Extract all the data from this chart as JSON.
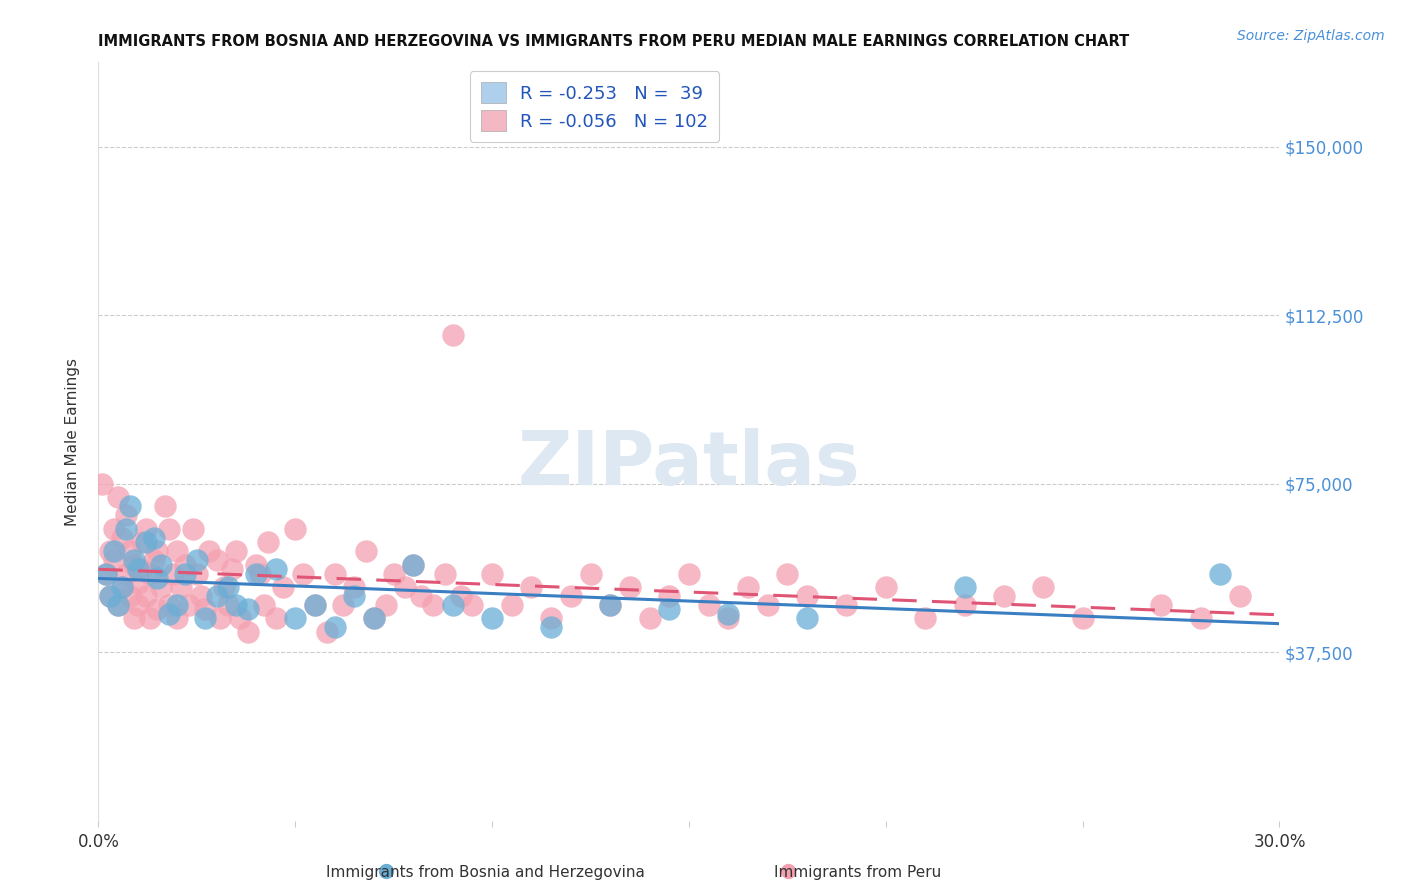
{
  "title": "IMMIGRANTS FROM BOSNIA AND HERZEGOVINA VS IMMIGRANTS FROM PERU MEDIAN MALE EARNINGS CORRELATION CHART",
  "source": "Source: ZipAtlas.com",
  "ylabel": "Median Male Earnings",
  "ytick_labels": [
    "$37,500",
    "$75,000",
    "$112,500",
    "$150,000"
  ],
  "ytick_values": [
    37500,
    75000,
    112500,
    150000
  ],
  "ylim": [
    0,
    168750
  ],
  "xlim": [
    0.0,
    0.3
  ],
  "bosnia_color": "#6aaed6",
  "peru_color": "#f4a0b0",
  "bosnia_line_color": "#3a7fc1",
  "peru_line_color": "#e05575",
  "bosnia_R": -0.253,
  "bosnia_N": 39,
  "peru_R": -0.056,
  "peru_N": 102,
  "bosnia_label": "Immigrants from Bosnia and Herzegovina",
  "peru_label": "Immigrants from Peru",
  "watermark": "ZIPatlas",
  "bosnia_scatter_x": [
    0.002,
    0.003,
    0.004,
    0.005,
    0.006,
    0.007,
    0.008,
    0.009,
    0.01,
    0.012,
    0.014,
    0.015,
    0.016,
    0.018,
    0.02,
    0.022,
    0.025,
    0.027,
    0.03,
    0.033,
    0.035,
    0.038,
    0.04,
    0.045,
    0.05,
    0.055,
    0.06,
    0.065,
    0.07,
    0.08,
    0.09,
    0.1,
    0.115,
    0.13,
    0.145,
    0.16,
    0.18,
    0.22,
    0.285
  ],
  "bosnia_scatter_y": [
    55000,
    50000,
    60000,
    48000,
    52000,
    65000,
    70000,
    58000,
    56000,
    62000,
    63000,
    54000,
    57000,
    46000,
    48000,
    55000,
    58000,
    45000,
    50000,
    52000,
    48000,
    47000,
    55000,
    56000,
    45000,
    48000,
    43000,
    50000,
    45000,
    57000,
    48000,
    45000,
    43000,
    48000,
    47000,
    46000,
    45000,
    52000,
    55000
  ],
  "peru_scatter_x": [
    0.001,
    0.002,
    0.003,
    0.003,
    0.004,
    0.004,
    0.005,
    0.005,
    0.006,
    0.006,
    0.007,
    0.007,
    0.008,
    0.008,
    0.009,
    0.009,
    0.01,
    0.01,
    0.011,
    0.011,
    0.012,
    0.012,
    0.013,
    0.013,
    0.014,
    0.015,
    0.015,
    0.016,
    0.017,
    0.018,
    0.018,
    0.019,
    0.02,
    0.02,
    0.021,
    0.022,
    0.023,
    0.024,
    0.025,
    0.026,
    0.027,
    0.028,
    0.03,
    0.031,
    0.032,
    0.033,
    0.034,
    0.035,
    0.036,
    0.038,
    0.04,
    0.041,
    0.042,
    0.043,
    0.045,
    0.047,
    0.05,
    0.052,
    0.055,
    0.058,
    0.06,
    0.062,
    0.065,
    0.068,
    0.07,
    0.073,
    0.075,
    0.078,
    0.08,
    0.082,
    0.085,
    0.088,
    0.09,
    0.092,
    0.095,
    0.1,
    0.105,
    0.11,
    0.115,
    0.12,
    0.125,
    0.13,
    0.135,
    0.14,
    0.145,
    0.15,
    0.155,
    0.16,
    0.165,
    0.17,
    0.175,
    0.18,
    0.19,
    0.2,
    0.21,
    0.22,
    0.23,
    0.24,
    0.25,
    0.27,
    0.28,
    0.29
  ],
  "peru_scatter_y": [
    75000,
    55000,
    50000,
    60000,
    65000,
    58000,
    72000,
    48000,
    52000,
    63000,
    68000,
    55000,
    60000,
    50000,
    57000,
    45000,
    48000,
    53000,
    62000,
    56000,
    50000,
    65000,
    55000,
    45000,
    58000,
    60000,
    47000,
    52000,
    70000,
    65000,
    48000,
    55000,
    60000,
    45000,
    52000,
    57000,
    48000,
    65000,
    55000,
    50000,
    47000,
    60000,
    58000,
    45000,
    52000,
    48000,
    56000,
    60000,
    45000,
    42000,
    57000,
    55000,
    48000,
    62000,
    45000,
    52000,
    65000,
    55000,
    48000,
    42000,
    55000,
    48000,
    52000,
    60000,
    45000,
    48000,
    55000,
    52000,
    57000,
    50000,
    48000,
    55000,
    108000,
    50000,
    48000,
    55000,
    48000,
    52000,
    45000,
    50000,
    55000,
    48000,
    52000,
    45000,
    50000,
    55000,
    48000,
    45000,
    52000,
    48000,
    55000,
    50000,
    48000,
    52000,
    45000,
    48000,
    50000,
    52000,
    45000,
    48000,
    45000,
    50000
  ]
}
